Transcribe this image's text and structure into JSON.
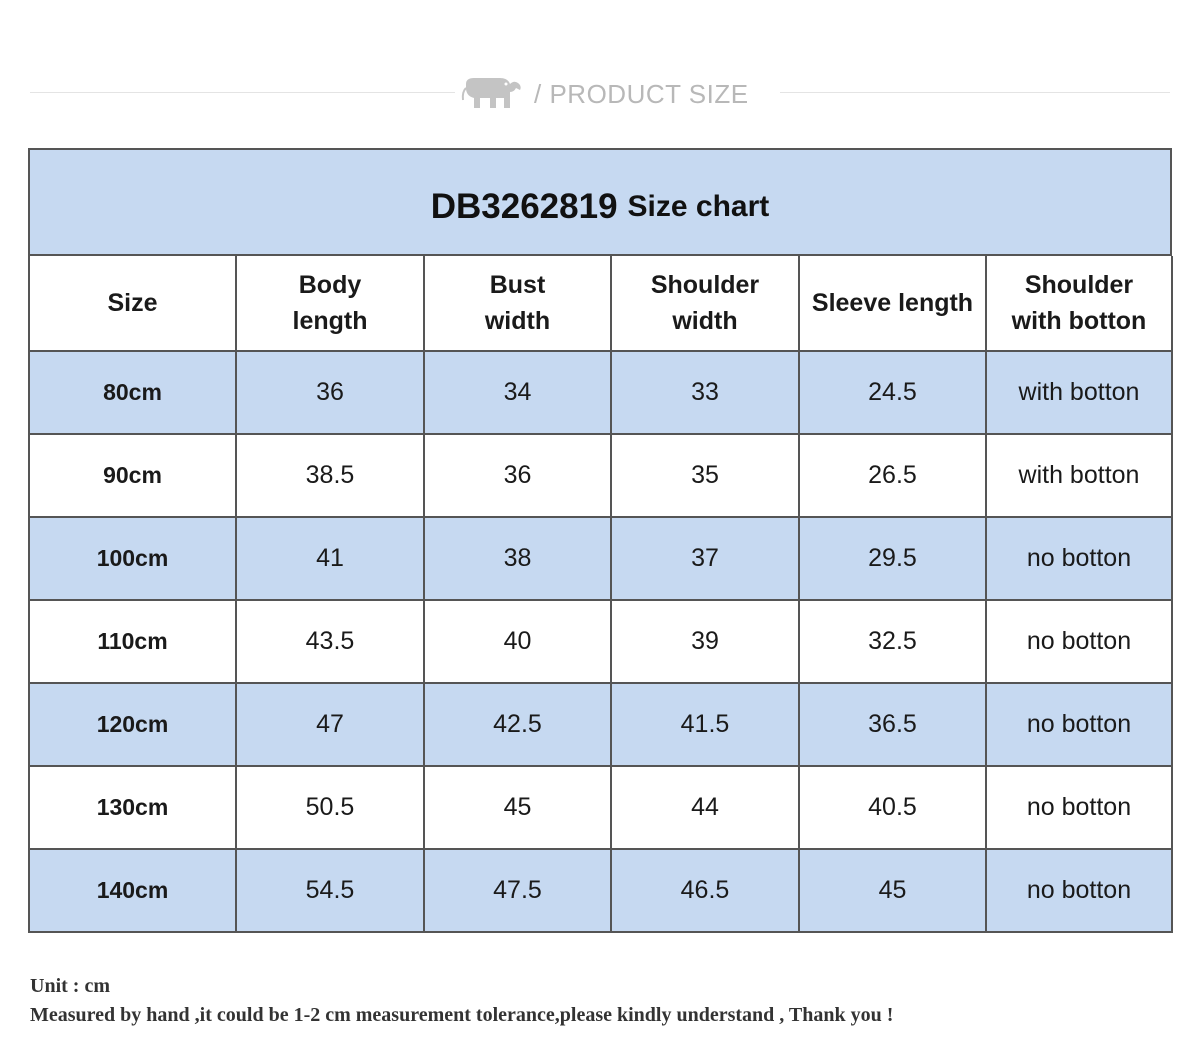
{
  "header": {
    "label": "/ PRODUCT SIZE",
    "icon": "elephant-icon"
  },
  "chart_data": {
    "type": "table",
    "title_code": "DB3262819",
    "title_rest": "Size chart",
    "columns": [
      "Size",
      "Body length",
      "Bust width",
      "Shoulder width",
      "Sleeve length",
      "Shoulder with botton"
    ],
    "rows": [
      [
        "80cm",
        "36",
        "34",
        "33",
        "24.5",
        "with botton"
      ],
      [
        "90cm",
        "38.5",
        "36",
        "35",
        "26.5",
        "with botton"
      ],
      [
        "100cm",
        "41",
        "38",
        "37",
        "29.5",
        "no botton"
      ],
      [
        "110cm",
        "43.5",
        "40",
        "39",
        "32.5",
        "no botton"
      ],
      [
        "120cm",
        "47",
        "42.5",
        "41.5",
        "36.5",
        "no botton"
      ],
      [
        "130cm",
        "50.5",
        "45",
        "44",
        "40.5",
        "no botton"
      ],
      [
        "140cm",
        "54.5",
        "47.5",
        "46.5",
        "45",
        "no botton"
      ]
    ]
  },
  "notes": {
    "unit": "Unit : cm",
    "disclaimer": "Measured by hand ,it could be 1-2 cm measurement tolerance,please kindly understand , Thank you !"
  },
  "colors": {
    "band": "#c6d9f1",
    "border": "#555555",
    "header_text": "#b8b8b8"
  }
}
